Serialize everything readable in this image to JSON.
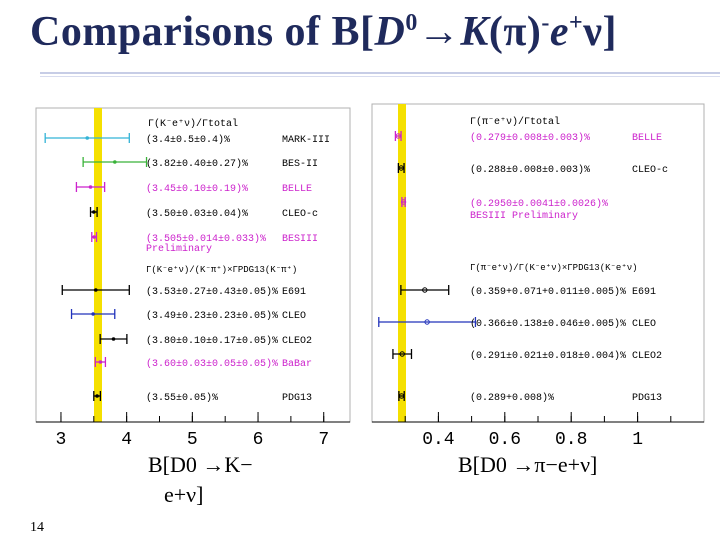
{
  "slide": {
    "title_prefix": "Comparisons of B[",
    "title_D": "D",
    "title_D_sup": "0",
    "title_arrow": "→",
    "title_K": "K",
    "title_pi": "(π)",
    "title_minus": "-",
    "title_e": "e",
    "title_plus": "+",
    "title_nu": "ν",
    "title_end": "]",
    "page_number": "14"
  },
  "left_panel": {
    "header1": "Γ(K⁻e⁺ν)/Γtotal",
    "header2": "Γ(K⁻e⁺ν)/(K⁻π⁺)×ΓPDG13(K⁻π⁺)",
    "entries": [
      {
        "text": "(3.4±0.5±0.4)%",
        "label": "MARK-III",
        "color": "#33b3d6",
        "label_color": "#000000"
      },
      {
        "text": "(3.82±0.40±0.27)%",
        "label": "BES-II",
        "color": "#39b239",
        "label_color": "#000000"
      },
      {
        "text": "(3.45±0.10±0.19)%",
        "label": "BELLE",
        "color": "#cc22cc",
        "label_color": "#cc22cc"
      },
      {
        "text": "(3.50±0.03±0.04)%",
        "label": "CLEO-c",
        "color": "#000000",
        "label_color": "#000000"
      },
      {
        "text": "(3.505±0.014±0.033)%",
        "label": "BESIII",
        "sub": "Preliminary",
        "color": "#cc22cc",
        "label_color": "#cc22cc"
      },
      {
        "text": "(3.53±0.27±0.43±0.05)%",
        "label": "E691",
        "color": "#000000",
        "label_color": "#000000"
      },
      {
        "text": "(3.49±0.23±0.23±0.05)%",
        "label": "CLEO",
        "color": "#2233bb",
        "label_color": "#000000"
      },
      {
        "text": "(3.80±0.10±0.17±0.05)%",
        "label": "CLEO2",
        "color": "#000000",
        "label_color": "#000000"
      },
      {
        "text": "(3.60±0.03±0.05±0.05)%",
        "label": "BaBar",
        "color": "#cc22cc",
        "label_color": "#cc22cc"
      },
      {
        "text": "(3.55±0.05)%",
        "label": "PDG13",
        "color": "#000000",
        "label_color": "#000000"
      }
    ],
    "axis_ticks": [
      "3",
      "4",
      "5",
      "6",
      "7"
    ],
    "caption_line1": "B[D0 →K−",
    "caption_line2": "e+ν]"
  },
  "right_panel": {
    "header1": "Γ(π⁻e⁺ν)/Γtotal",
    "header2": "Γ(π⁻e⁺ν)/Γ(K⁻e⁺ν)×ΓPDG13(K⁻e⁺ν)",
    "entries": [
      {
        "text": "(0.279±0.008±0.003)%",
        "label": "BELLE",
        "color": "#cc22cc",
        "label_color": "#cc22cc"
      },
      {
        "text": "(0.288±0.008±0.003)%",
        "label": "CLEO-c",
        "color": "#000000",
        "label_color": "#000000"
      },
      {
        "text": "(0.2950±0.0041±0.0026)%",
        "label": "BESIII Preliminary",
        "color": "#cc22cc",
        "label_color": "#cc22cc"
      },
      {
        "text": "(0.359+0.071+0.011±0.005)%",
        "label": "E691",
        "color": "#000000",
        "label_color": "#000000"
      },
      {
        "text": "(0.366±0.138±0.046±0.005)%",
        "label": "CLEO",
        "color": "#2233bb",
        "label_color": "#000000"
      },
      {
        "text": "(0.291±0.021±0.018±0.004)%",
        "label": "CLEO2",
        "color": "#000000",
        "label_color": "#000000"
      },
      {
        "text": "(0.289+0.008)%",
        "label": "PDG13",
        "color": "#000000",
        "label_color": "#000000"
      }
    ],
    "axis_ticks": [
      "0.4",
      "0.6",
      "0.8",
      "1"
    ],
    "caption": "B[D0 →π−e+ν]"
  }
}
